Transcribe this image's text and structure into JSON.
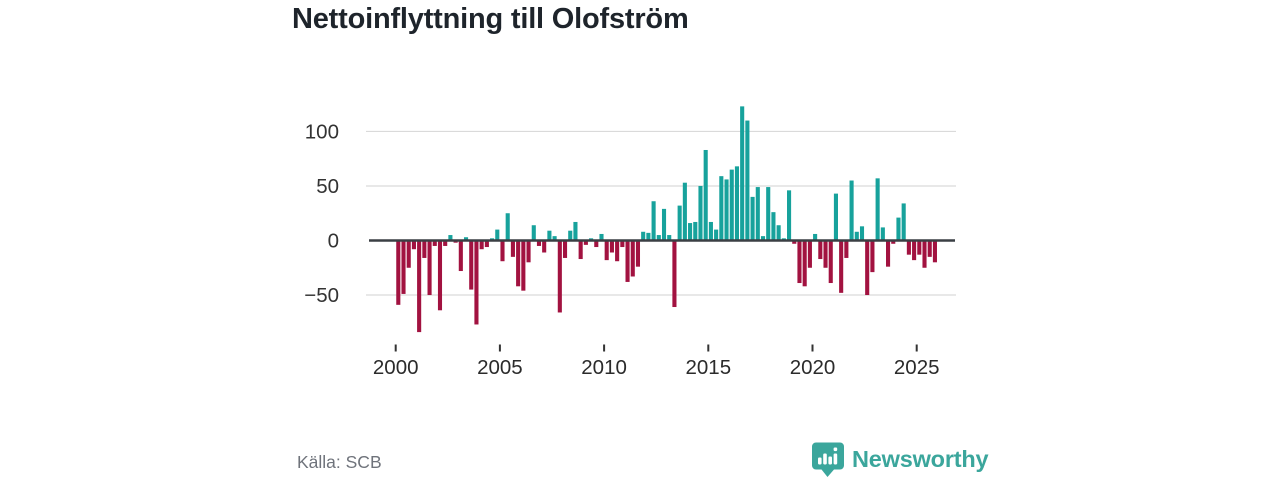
{
  "title": "Nettoinflyttning till Olofström",
  "source": {
    "text": "Källa: SCB"
  },
  "brand": {
    "name": "Newsworthy",
    "icon": "newsworthy-pin-barchart-icon"
  },
  "colors": {
    "positive_bar": "#17a29c",
    "negative_bar": "#a21240",
    "brand_teal": "#3ba69c",
    "zero_line": "#3a3f44",
    "gridline": "#dadada",
    "axis_text": "#333333",
    "title_text": "#1e242b",
    "source_text": "#6f737b"
  },
  "chart_data": {
    "type": "bar",
    "title": "Nettoinflyttning till Olofström",
    "xlabel": "",
    "ylabel": "",
    "frequency": "quarterly",
    "start_period": "2000-Q1",
    "end_period": "2025-Q4",
    "x_tick_labels": [
      "2000",
      "2005",
      "2010",
      "2015",
      "2020",
      "2025"
    ],
    "x_tick_years": [
      2000,
      2005,
      2010,
      2015,
      2020,
      2025
    ],
    "y_ticks": [
      100,
      50,
      0,
      -50
    ],
    "y_tick_labels": [
      "100",
      "50",
      "0",
      "−50"
    ],
    "ylim": [
      -95,
      140
    ],
    "grid": "horizontal",
    "legend": "none",
    "values": [
      -59,
      -49,
      -25,
      -8,
      -84,
      -16,
      -50,
      -5,
      -64,
      -5,
      5,
      -2,
      -28,
      3,
      -45,
      -77,
      -8,
      -6,
      2,
      10,
      -19,
      25,
      -15,
      -42,
      -46,
      -20,
      14,
      -5,
      -11,
      9,
      4,
      -66,
      -16,
      9,
      17,
      -17,
      -4,
      2,
      -6,
      6,
      -18,
      -11,
      -19,
      -6,
      -38,
      -33,
      -24,
      8,
      7,
      36,
      5,
      29,
      5,
      -61,
      32,
      53,
      16,
      17,
      50,
      83,
      17,
      10,
      59,
      56,
      65,
      68,
      123,
      110,
      40,
      49,
      4,
      49,
      26,
      14,
      2,
      46,
      -3,
      -39,
      -42,
      -25,
      6,
      -17,
      -25,
      -39,
      43,
      -48,
      -16,
      55,
      8,
      13,
      -50,
      -29,
      57,
      12,
      -24,
      -3,
      21,
      34,
      -13,
      -18,
      -13,
      -25,
      -15,
      -20
    ]
  }
}
